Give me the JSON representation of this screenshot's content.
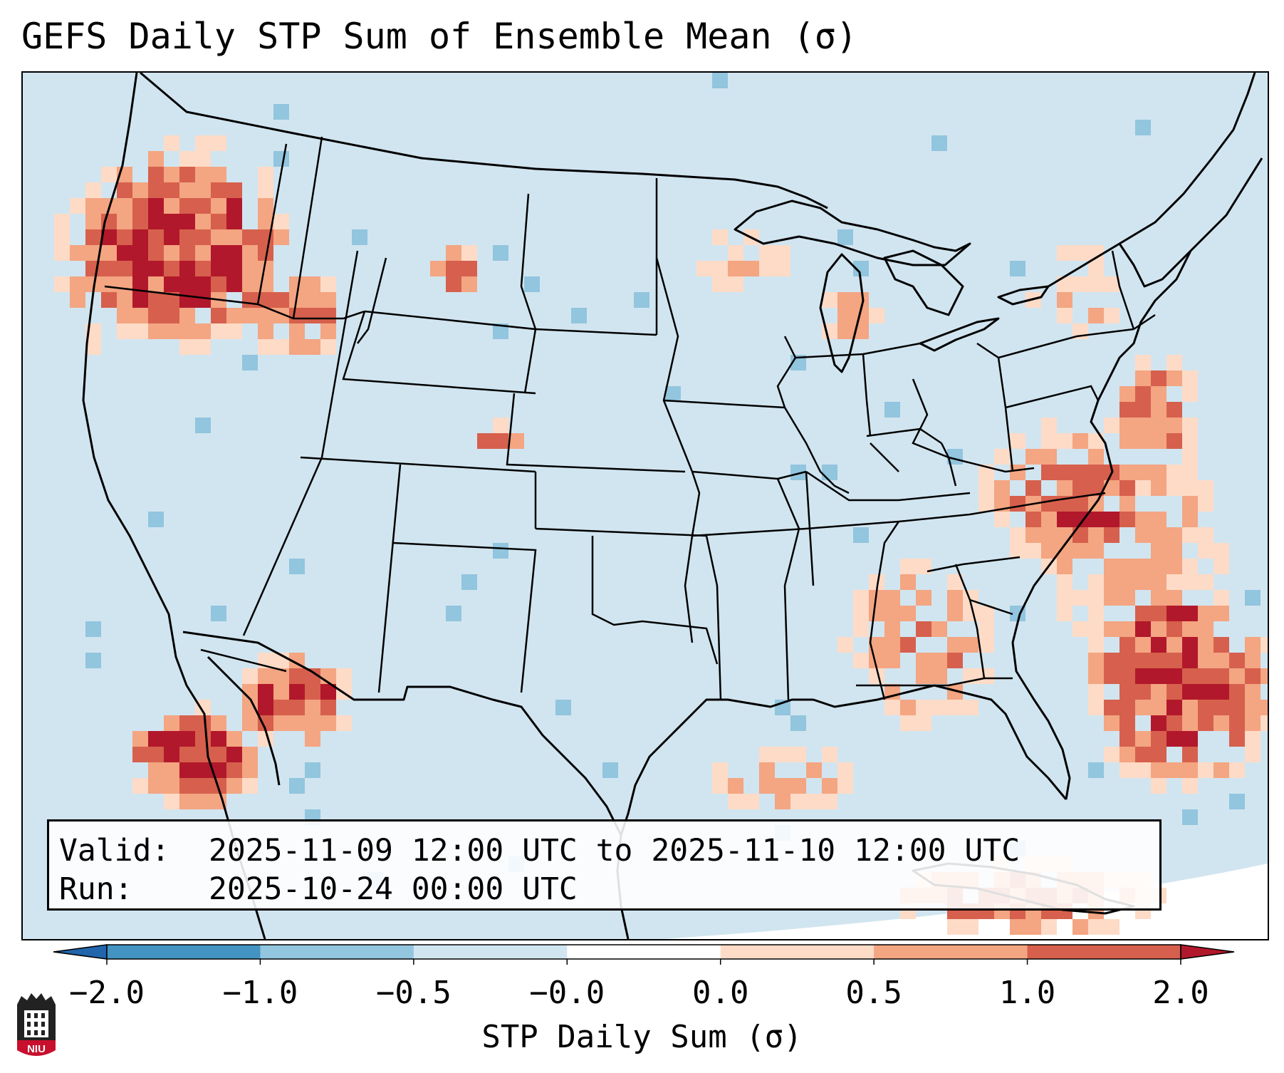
{
  "title": "GEFS Daily STP Sum of Ensemble Mean (σ)",
  "info": {
    "valid_label": "Valid:",
    "valid_value": "2025-11-09 12:00 UTC to 2025-11-10 12:00 UTC",
    "run_label": "Run:",
    "run_value": "2025-10-24 00:00 UTC"
  },
  "colorbar": {
    "label": "STP Daily Sum (σ)",
    "ticks": [
      "−2.0",
      "−1.0",
      "−0.5",
      "−0.0",
      "0.0",
      "0.5",
      "1.0",
      "2.0"
    ],
    "bins": [
      {
        "color": "#4393c3"
      },
      {
        "color": "#92c5de"
      },
      {
        "color": "#d1e5f0"
      },
      {
        "color": "#ffffff"
      },
      {
        "color": "#fddbc7"
      },
      {
        "color": "#f4a582"
      },
      {
        "color": "#d6604d"
      }
    ],
    "under_color": "#2166ac",
    "over_color": "#b2182b"
  },
  "map": {
    "background_color": "#d1e5f0",
    "outside_color": "#ffffff"
  },
  "logo": {
    "text": "NIU",
    "color": "#c8102e"
  }
}
